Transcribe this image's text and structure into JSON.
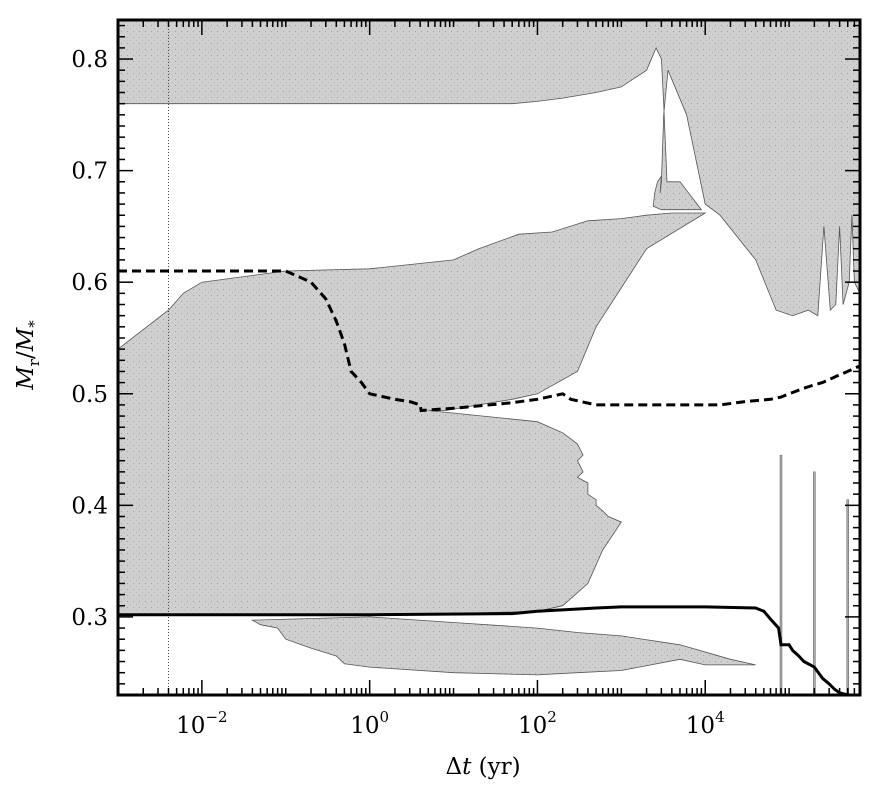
{
  "chart_data": {
    "type": "area",
    "x_axis": {
      "label_prefix": "Δ",
      "label_var": "t",
      "label_unit": "(yr)",
      "scale": "log",
      "range": [
        0.001,
        700000
      ],
      "ticks": [
        {
          "value": 0.01,
          "base": "10",
          "exp": "−2"
        },
        {
          "value": 1,
          "base": "10",
          "exp": "0"
        },
        {
          "value": 100,
          "base": "10",
          "exp": "2"
        },
        {
          "value": 10000,
          "base": "10",
          "exp": "4"
        }
      ]
    },
    "y_axis": {
      "label_main": "M",
      "label_sub_top": "r",
      "label_slash": "/",
      "label_sub_bottom": "*",
      "range": [
        0.23,
        0.835
      ],
      "ticks": [
        0.3,
        0.4,
        0.5,
        0.6,
        0.7,
        0.8
      ]
    },
    "reference_line_x": 0.004,
    "regions": [
      {
        "name": "upper",
        "points": [
          [
            0.001,
            0.835
          ],
          [
            700000,
            0.835
          ],
          [
            700000,
            0.59
          ],
          [
            600000,
            0.6
          ],
          [
            560000,
            0.66
          ],
          [
            520000,
            0.6
          ],
          [
            440000,
            0.58
          ],
          [
            400000,
            0.65
          ],
          [
            360000,
            0.58
          ],
          [
            310000,
            0.575
          ],
          [
            260000,
            0.65
          ],
          [
            220000,
            0.57
          ],
          [
            170000,
            0.575
          ],
          [
            110000,
            0.57
          ],
          [
            70000,
            0.575
          ],
          [
            40000,
            0.62
          ],
          [
            15000,
            0.66
          ],
          [
            10000,
            0.67
          ],
          [
            6000,
            0.75
          ],
          [
            3600,
            0.79
          ],
          [
            3200,
            0.75
          ],
          [
            3000,
            0.69
          ],
          [
            2900,
            0.68
          ],
          [
            3000,
            0.695
          ],
          [
            2700,
            0.69
          ],
          [
            2500,
            0.68
          ],
          [
            2400,
            0.668
          ],
          [
            3000,
            0.665
          ],
          [
            6000,
            0.665
          ],
          [
            9000,
            0.665
          ],
          [
            5000,
            0.69
          ],
          [
            3500,
            0.69
          ],
          [
            3200,
            0.76
          ],
          [
            3000,
            0.8
          ],
          [
            2600,
            0.81
          ],
          [
            2000,
            0.79
          ],
          [
            1000,
            0.775
          ],
          [
            500,
            0.77
          ],
          [
            200,
            0.765
          ],
          [
            100,
            0.762
          ],
          [
            50,
            0.76
          ],
          [
            1,
            0.76
          ],
          [
            0.001,
            0.76
          ]
        ]
      },
      {
        "name": "main",
        "points": [
          [
            0.001,
            0.54
          ],
          [
            0.004,
            0.575
          ],
          [
            0.006,
            0.59
          ],
          [
            0.01,
            0.6
          ],
          [
            0.1,
            0.61
          ],
          [
            1,
            0.612
          ],
          [
            10,
            0.62
          ],
          [
            20,
            0.63
          ],
          [
            60,
            0.643
          ],
          [
            150,
            0.645
          ],
          [
            400,
            0.655
          ],
          [
            1000,
            0.657
          ],
          [
            2000,
            0.66
          ],
          [
            4000,
            0.662
          ],
          [
            10000,
            0.662
          ],
          [
            2000,
            0.63
          ],
          [
            500,
            0.56
          ],
          [
            300,
            0.52
          ],
          [
            100,
            0.5
          ],
          [
            50,
            0.495
          ],
          [
            20,
            0.49
          ],
          [
            8,
            0.485
          ],
          [
            5,
            0.485
          ],
          [
            100,
            0.475
          ],
          [
            200,
            0.465
          ],
          [
            300,
            0.455
          ],
          [
            350,
            0.445
          ],
          [
            300,
            0.44
          ],
          [
            350,
            0.43
          ],
          [
            300,
            0.425
          ],
          [
            400,
            0.42
          ],
          [
            400,
            0.41
          ],
          [
            500,
            0.405
          ],
          [
            500,
            0.4
          ],
          [
            600,
            0.395
          ],
          [
            700,
            0.39
          ],
          [
            1000,
            0.385
          ],
          [
            600,
            0.36
          ],
          [
            400,
            0.33
          ],
          [
            200,
            0.31
          ],
          [
            100,
            0.305
          ],
          [
            10,
            0.303
          ],
          [
            1,
            0.302
          ],
          [
            0.001,
            0.302
          ]
        ]
      },
      {
        "name": "lower",
        "points": [
          [
            0.04,
            0.297
          ],
          [
            1,
            0.3
          ],
          [
            10,
            0.295
          ],
          [
            100,
            0.29
          ],
          [
            300,
            0.286
          ],
          [
            1000,
            0.283
          ],
          [
            5000,
            0.275
          ],
          [
            20000,
            0.262
          ],
          [
            40000,
            0.257
          ],
          [
            10000,
            0.257
          ],
          [
            5000,
            0.262
          ],
          [
            1000,
            0.252
          ],
          [
            300,
            0.25
          ],
          [
            100,
            0.248
          ],
          [
            10,
            0.25
          ],
          [
            1,
            0.255
          ],
          [
            0.5,
            0.258
          ],
          [
            0.4,
            0.265
          ],
          [
            0.2,
            0.272
          ],
          [
            0.1,
            0.28
          ],
          [
            0.08,
            0.29
          ],
          [
            0.05,
            0.293
          ]
        ]
      }
    ],
    "spikes": [
      {
        "x": 80000,
        "y_top": 0.445
      },
      {
        "x": 200000,
        "y_top": 0.43
      },
      {
        "x": 500000,
        "y_top": 0.405
      }
    ],
    "solid_line": [
      [
        0.001,
        0.302
      ],
      [
        1,
        0.302
      ],
      [
        50,
        0.303
      ],
      [
        100,
        0.305
      ],
      [
        500,
        0.308
      ],
      [
        1000,
        0.309
      ],
      [
        10000,
        0.309
      ],
      [
        40000,
        0.308
      ],
      [
        50000,
        0.305
      ],
      [
        60000,
        0.298
      ],
      [
        75000,
        0.29
      ],
      [
        80000,
        0.275
      ],
      [
        100000,
        0.275
      ],
      [
        110000,
        0.27
      ],
      [
        130000,
        0.265
      ],
      [
        150000,
        0.26
      ],
      [
        200000,
        0.255
      ],
      [
        250000,
        0.245
      ],
      [
        300000,
        0.24
      ],
      [
        350000,
        0.235
      ],
      [
        400000,
        0.232
      ],
      [
        500000,
        0.23
      ]
    ],
    "dashed_line": [
      [
        0.001,
        0.61
      ],
      [
        0.1,
        0.61
      ],
      [
        0.2,
        0.6
      ],
      [
        0.3,
        0.585
      ],
      [
        0.4,
        0.565
      ],
      [
        0.5,
        0.545
      ],
      [
        0.6,
        0.52
      ],
      [
        0.8,
        0.51
      ],
      [
        1,
        0.5
      ],
      [
        2,
        0.495
      ],
      [
        3,
        0.493
      ],
      [
        4,
        0.49
      ],
      [
        4.1,
        0.485
      ],
      [
        10,
        0.487
      ],
      [
        50,
        0.492
      ],
      [
        100,
        0.495
      ],
      [
        200,
        0.5
      ],
      [
        250,
        0.495
      ],
      [
        500,
        0.49
      ],
      [
        5000,
        0.49
      ],
      [
        15000,
        0.49
      ],
      [
        30000,
        0.493
      ],
      [
        60000,
        0.495
      ],
      [
        80000,
        0.497
      ],
      [
        100000,
        0.5
      ],
      [
        150000,
        0.505
      ],
      [
        200000,
        0.508
      ],
      [
        250000,
        0.51
      ],
      [
        350000,
        0.515
      ],
      [
        500000,
        0.52
      ],
      [
        700000,
        0.525
      ]
    ]
  }
}
